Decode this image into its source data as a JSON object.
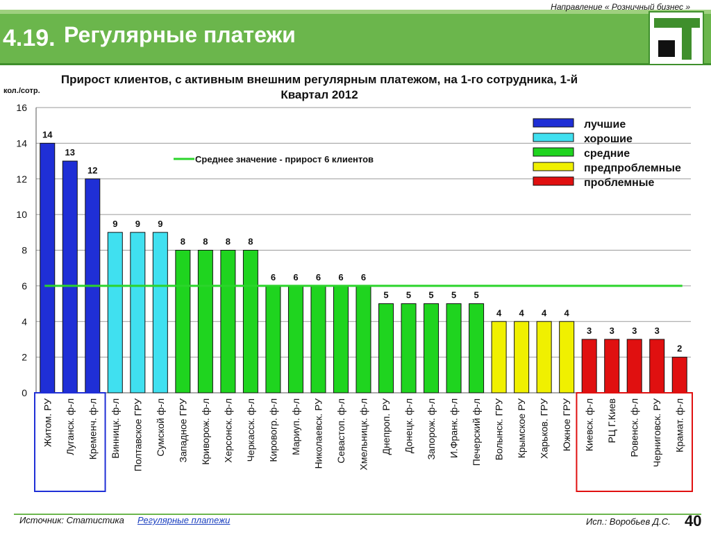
{
  "header": {
    "direction": "Направление « Розничный бизнес »",
    "section_number": "4.19.",
    "section_title": "Регулярные платежи"
  },
  "footer": {
    "source_label": "Источник: Статистика",
    "source_link": "Регулярные платежи",
    "author": "Исп.: Воробьев Д.С.",
    "page_number": "40"
  },
  "colors": {
    "best": "#1f2fd6",
    "good": "#40e0f0",
    "average": "#1fd41f",
    "pre_problem": "#f0f000",
    "problem": "#e01010",
    "mean_line": "#2bd42b",
    "header_green": "#6bb64c"
  },
  "chart_data": {
    "type": "bar",
    "title": "Прирост клиентов, с активным внешним регулярным платежом, на   1-го сотрудника, 1-й Квартал  2012",
    "ylabel": "кол./сотр.",
    "ylim": [
      0,
      16
    ],
    "yticks": [
      0,
      2,
      4,
      6,
      8,
      10,
      12,
      14,
      16
    ],
    "grid": true,
    "categories": [
      "Житом. РУ",
      "Луганск. ф-л",
      "Кременч. ф-л",
      "Винницк. ф-л",
      "Полтавское ГРУ",
      "Сумской ф-л",
      "Западное ГРУ",
      "Криворож. ф-л",
      "Херсонск. ф-л",
      "Черкасск. ф-л",
      "Кировогр. ф-л",
      "Мариуп. ф-л",
      "Николаевск. РУ",
      "Севастоп. ф-л",
      "Хмельницк. ф-л",
      "Днепроп. РУ",
      "Донецк. ф-л",
      "Запорож. ф-л",
      "И.Франк. ф-л",
      "Печерский ф-л",
      "Волынск. ГРУ",
      "Крымское РУ",
      "Харьков. ГРУ",
      "Южное ГРУ",
      "Киевск. ф-л",
      "РЦ Г.Киев",
      "Ровенск. ф-л",
      "Черниговск. РУ",
      "Крамат. ф-л"
    ],
    "values": [
      14,
      13,
      12,
      9,
      9,
      9,
      8,
      8,
      8,
      8,
      6,
      6,
      6,
      6,
      6,
      5,
      5,
      5,
      5,
      5,
      4,
      4,
      4,
      4,
      3,
      3,
      3,
      3,
      2
    ],
    "groups": [
      "best",
      "best",
      "best",
      "good",
      "good",
      "good",
      "average",
      "average",
      "average",
      "average",
      "average",
      "average",
      "average",
      "average",
      "average",
      "average",
      "average",
      "average",
      "average",
      "average",
      "pre_problem",
      "pre_problem",
      "pre_problem",
      "pre_problem",
      "problem",
      "problem",
      "problem",
      "problem",
      "problem"
    ],
    "mean_value": 6,
    "mean_label": "Среднее значение - прирост 6 клиентов",
    "legend": {
      "placement": "top-right",
      "entries": [
        {
          "key": "best",
          "label": "лучшие"
        },
        {
          "key": "good",
          "label": "хорошие"
        },
        {
          "key": "average",
          "label": "средние"
        },
        {
          "key": "pre_problem",
          "label": "предпроблемные"
        },
        {
          "key": "problem",
          "label": "проблемные"
        }
      ]
    },
    "highlight_boxes": [
      {
        "color": "#1f2fd6",
        "from": 0,
        "to": 2
      },
      {
        "color": "#e01010",
        "from": 24,
        "to": 28
      }
    ]
  }
}
